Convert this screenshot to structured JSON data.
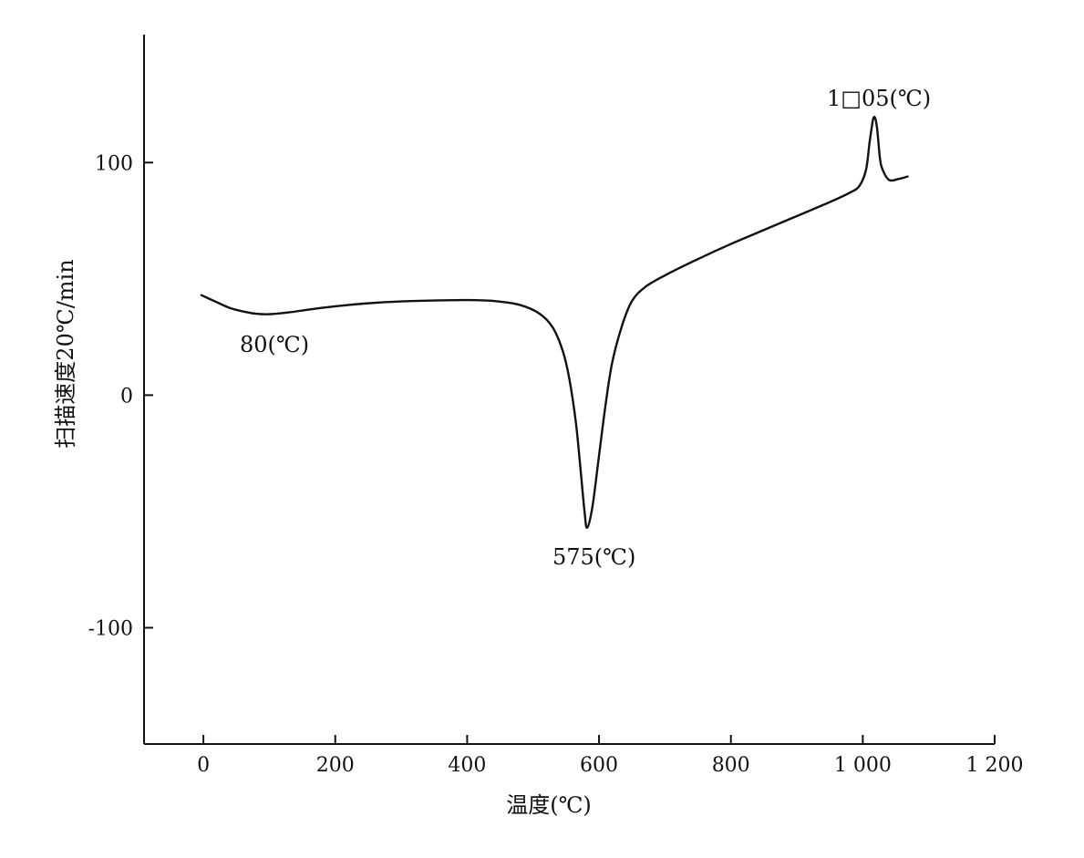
{
  "chart_data": {
    "type": "line",
    "title": "",
    "xlabel": "温度(℃)",
    "ylabel": "扫描速度20℃/min",
    "xlim": [
      -90,
      1200
    ],
    "ylim": [
      -150,
      155
    ],
    "x_ticks": [
      0,
      200,
      400,
      600,
      800,
      1000,
      1200
    ],
    "x_tick_labels": [
      "0",
      "200",
      "400",
      "600",
      "800",
      "1 000",
      "1 200"
    ],
    "y_ticks": [
      100,
      0,
      -100
    ],
    "y_tick_labels": [
      "100",
      "0",
      "-100"
    ],
    "grid": false,
    "series": [
      {
        "x": [
          -3,
          20,
          40,
          60,
          80,
          100,
          130,
          160,
          200,
          250,
          300,
          350,
          400,
          440,
          480,
          510,
          530,
          545,
          555,
          565,
          572,
          578,
          582,
          590,
          600,
          610,
          620,
          635,
          650,
          670,
          700,
          750,
          800,
          850,
          900,
          950,
          980,
          995,
          1005,
          1010,
          1013,
          1016,
          1019,
          1022,
          1026,
          1030,
          1040,
          1055,
          1068
        ],
        "y": [
          43,
          40,
          37.5,
          36,
          35,
          34.8,
          35.6,
          36.8,
          38.2,
          39.5,
          40.3,
          40.7,
          40.9,
          40.5,
          38.8,
          35,
          29,
          19,
          7,
          -12,
          -32,
          -50,
          -57,
          -48,
          -26,
          -4,
          14,
          30,
          40.5,
          46.5,
          51.5,
          58.5,
          65,
          71,
          77,
          83,
          87,
          90,
          97,
          108,
          114,
          119,
          119,
          114,
          102,
          97,
          92.5,
          93,
          94
        ]
      }
    ],
    "annotations": [
      {
        "text": "80(℃)",
        "x": 80,
        "y": 35
      },
      {
        "text": "575(℃)",
        "x": 578,
        "y": -57
      },
      {
        "text": "1□05(℃)",
        "x": 1017,
        "y": 119
      }
    ]
  }
}
